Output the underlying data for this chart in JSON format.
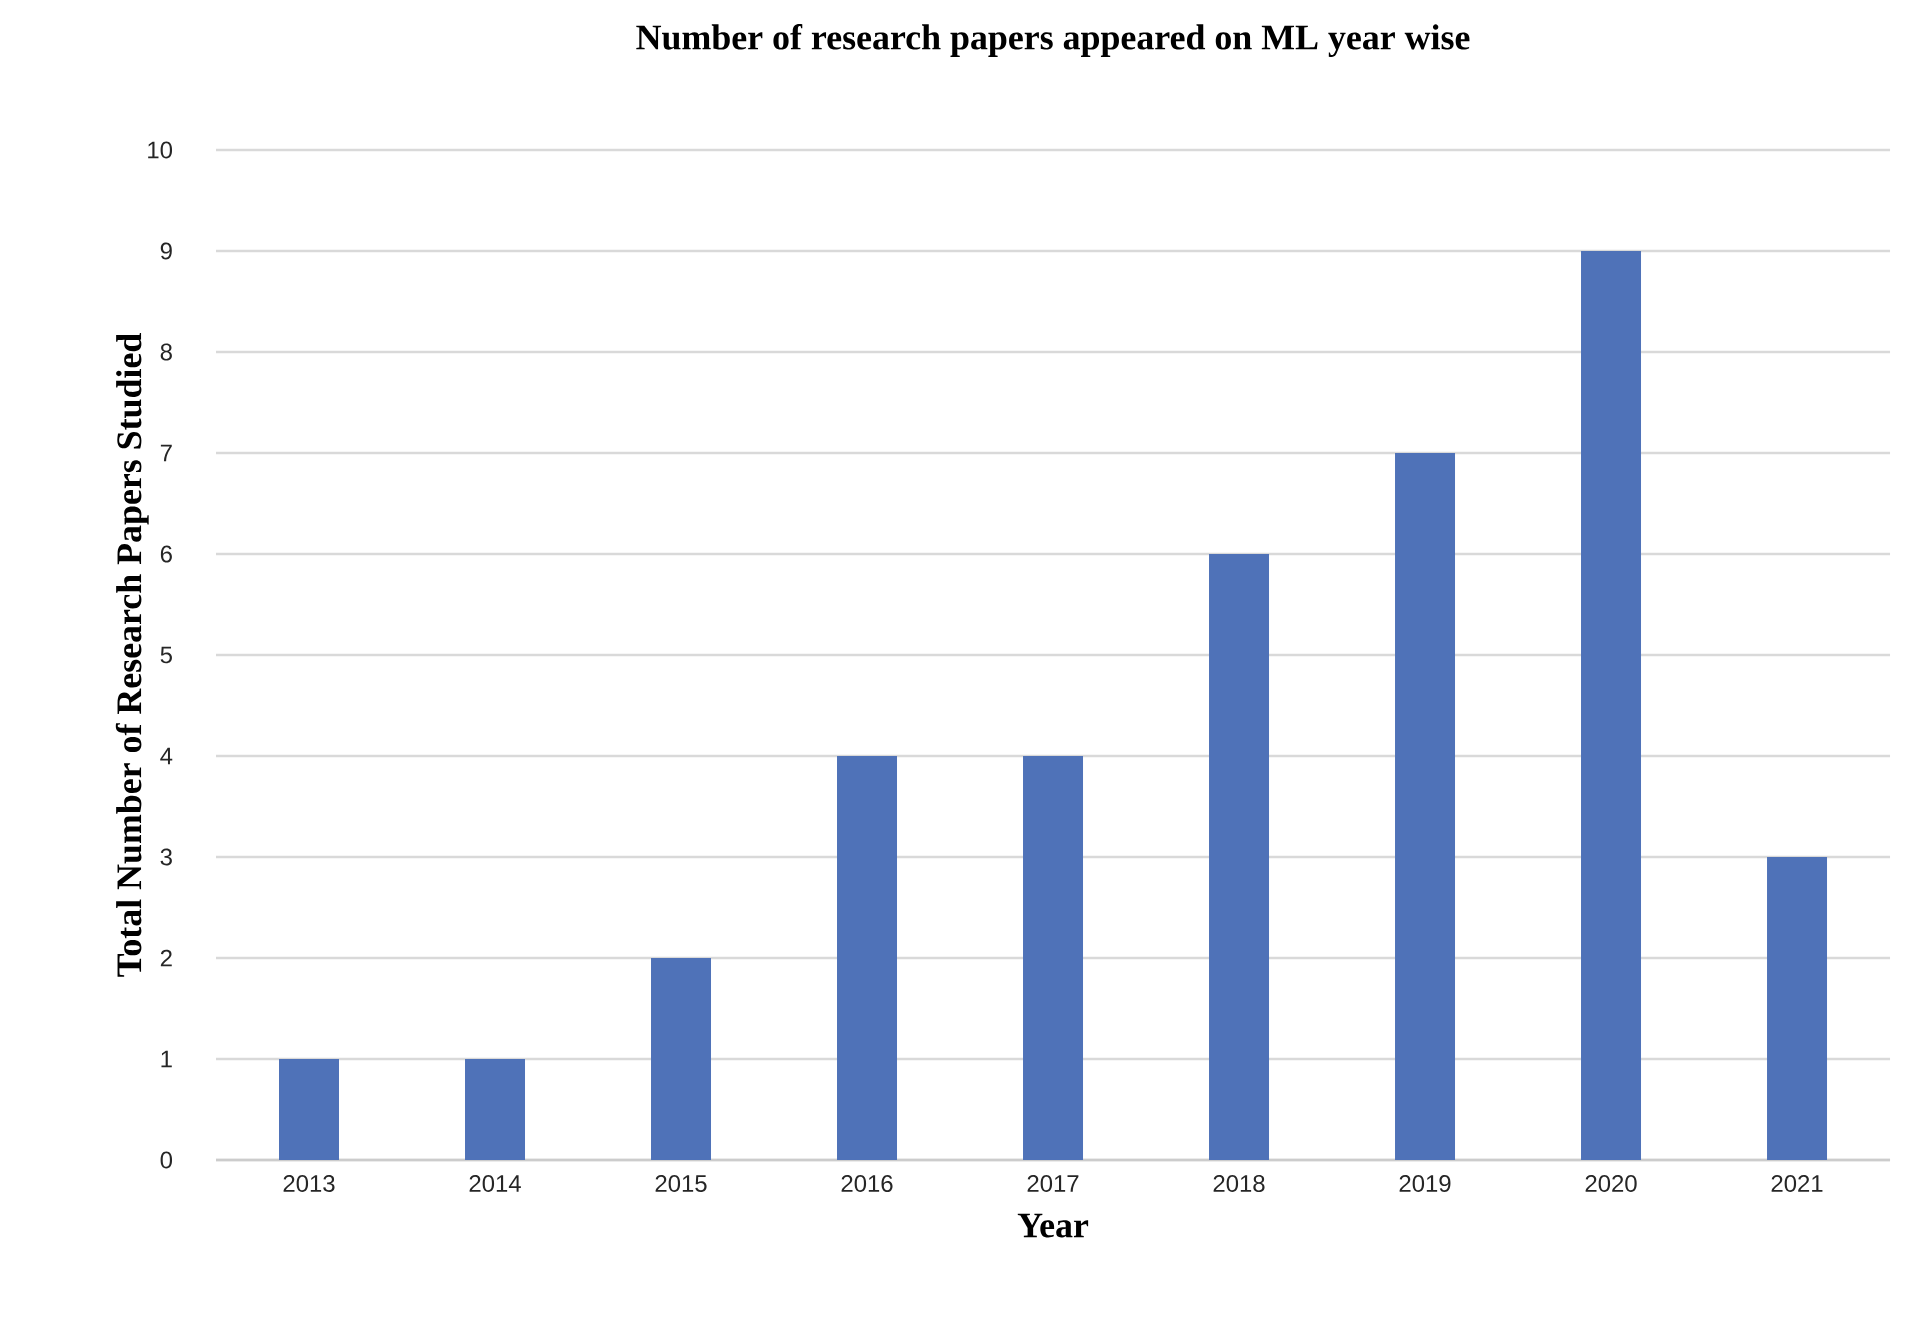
{
  "chart_data": {
    "type": "bar",
    "title": "Number of research papers appeared on ML year wise",
    "xlabel": "Year",
    "ylabel": "Total Number of Research Papers Studied",
    "categories": [
      "2013",
      "2014",
      "2015",
      "2016",
      "2017",
      "2018",
      "2019",
      "2020",
      "2021"
    ],
    "values": [
      1,
      1,
      2,
      4,
      4,
      6,
      7,
      9,
      3
    ],
    "color": "#4f72b8",
    "ylim": [
      0,
      10
    ],
    "yticks": [
      0,
      1,
      2,
      3,
      4,
      5,
      6,
      7,
      8,
      9,
      10
    ],
    "grid": "y"
  }
}
